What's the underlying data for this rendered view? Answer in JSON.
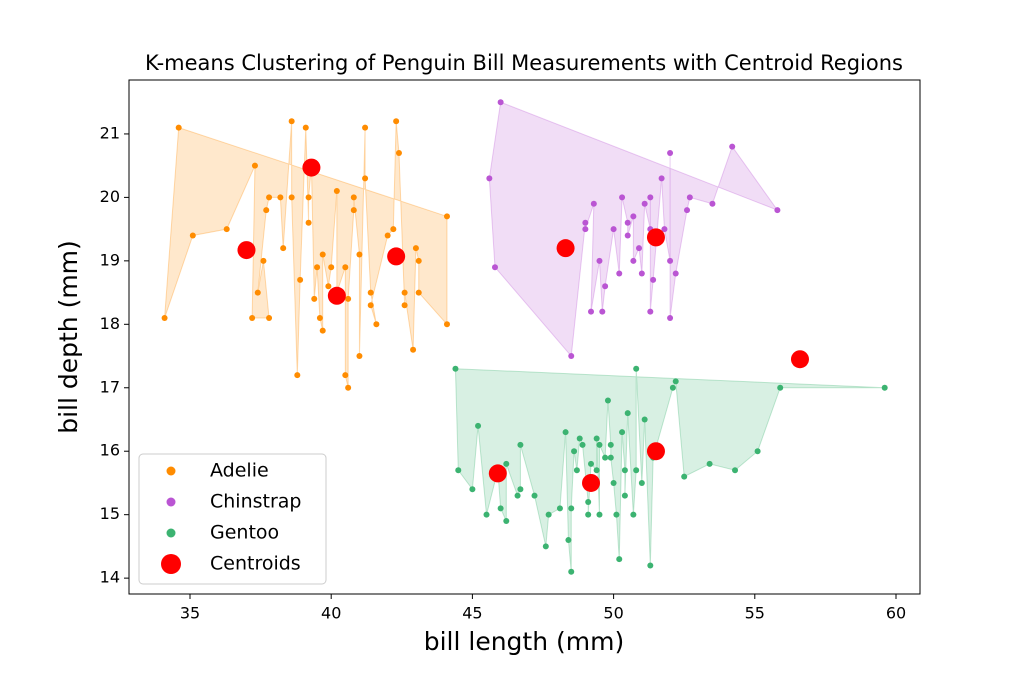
{
  "chart_data": {
    "type": "scatter",
    "title": "K-means Clustering of Penguin Bill Measurements with Centroid Regions",
    "xlabel": "bill length (mm)",
    "ylabel": "bill depth (mm)",
    "xlim": [
      32.84,
      60.85
    ],
    "ylim": [
      13.75,
      21.85
    ],
    "xticks": [
      35,
      40,
      45,
      50,
      55,
      60
    ],
    "yticks": [
      14,
      15,
      16,
      17,
      18,
      19,
      20,
      21
    ],
    "grid": false,
    "legend": "lower left",
    "series": [
      {
        "name": "Adelie",
        "color": "#ff8c00",
        "marker_size": 5,
        "fill_area": true,
        "x": [
          34.6,
          34.1,
          35.1,
          36.3,
          37.3,
          37.2,
          37.8,
          37.6,
          37.4,
          37.7,
          37.8,
          38.2,
          38.3,
          38.6,
          38.6,
          38.8,
          38.9,
          39.1,
          39.2,
          39.2,
          39.3,
          39.4,
          39.5,
          39.6,
          39.7,
          39.7,
          39.9,
          40.0,
          40.2,
          40.2,
          40.5,
          40.5,
          40.6,
          40.6,
          40.8,
          40.8,
          41.0,
          41.0,
          41.2,
          41.2,
          41.4,
          41.6,
          41.4,
          42.0,
          42.2,
          42.3,
          42.4,
          42.6,
          42.6,
          42.9,
          43.0,
          43.1,
          43.1,
          44.1,
          44.1
        ],
        "values": [
          21.1,
          18.1,
          19.4,
          19.5,
          20.5,
          18.1,
          18.1,
          19.0,
          18.5,
          19.8,
          20.0,
          20.0,
          19.2,
          21.2,
          20.0,
          17.2,
          18.7,
          21.1,
          19.6,
          20.0,
          20.5,
          18.4,
          18.9,
          18.1,
          17.9,
          19.1,
          18.6,
          18.9,
          20.1,
          18.5,
          18.9,
          17.2,
          17.0,
          18.4,
          19.8,
          20.0,
          19.1,
          17.5,
          21.1,
          20.3,
          18.5,
          18.0,
          18.3,
          19.4,
          19.5,
          21.2,
          20.7,
          18.3,
          18.5,
          17.6,
          19.2,
          19.0,
          18.5,
          18.0,
          19.7
        ]
      },
      {
        "name": "Chinstrap",
        "color": "#ba55d3",
        "marker_size": 5,
        "fill_area": true,
        "x": [
          46.0,
          45.6,
          45.8,
          48.5,
          49.0,
          49.0,
          49.3,
          49.2,
          49.5,
          49.6,
          49.7,
          50.0,
          50.2,
          50.3,
          50.5,
          50.5,
          50.7,
          50.7,
          50.9,
          51.0,
          51.1,
          51.3,
          51.3,
          51.3,
          51.4,
          51.7,
          51.8,
          52.0,
          52.0,
          52.0,
          52.2,
          52.6,
          52.7,
          53.5,
          54.2,
          55.8
        ],
        "values": [
          21.5,
          20.3,
          18.9,
          17.5,
          19.6,
          19.5,
          19.9,
          18.2,
          19.0,
          18.2,
          18.6,
          19.5,
          18.8,
          20.0,
          19.6,
          19.4,
          19.7,
          19.0,
          19.2,
          18.8,
          19.9,
          19.5,
          20.0,
          18.2,
          18.7,
          20.3,
          19.5,
          19.0,
          20.7,
          18.1,
          18.8,
          19.8,
          20.0,
          19.9,
          20.8,
          19.8
        ]
      },
      {
        "name": "Gentoo",
        "color": "#3cb371",
        "marker_size": 5,
        "fill_area": true,
        "x": [
          44.4,
          44.5,
          45.0,
          45.2,
          45.5,
          45.9,
          46.0,
          46.2,
          46.2,
          46.6,
          46.7,
          46.7,
          47.2,
          47.6,
          47.7,
          48.1,
          48.3,
          48.4,
          48.5,
          48.5,
          48.6,
          48.7,
          48.8,
          48.9,
          49.1,
          49.1,
          49.2,
          49.4,
          49.4,
          49.5,
          49.5,
          49.7,
          49.8,
          49.9,
          49.9,
          50.0,
          50.1,
          50.2,
          50.3,
          50.4,
          50.4,
          50.5,
          50.7,
          50.8,
          50.8,
          51.0,
          51.1,
          51.3,
          51.4,
          52.1,
          52.2,
          52.5,
          53.4,
          54.3,
          55.1,
          55.9,
          59.6
        ],
        "values": [
          17.3,
          15.7,
          15.4,
          16.4,
          15.0,
          15.7,
          15.1,
          14.9,
          15.8,
          15.3,
          15.4,
          16.1,
          15.3,
          14.5,
          15.0,
          15.1,
          16.3,
          14.6,
          14.1,
          15.1,
          16.0,
          15.7,
          16.2,
          16.1,
          15.2,
          15.0,
          15.8,
          15.7,
          16.2,
          15.0,
          16.1,
          15.9,
          16.8,
          16.1,
          15.9,
          15.5,
          15.0,
          14.3,
          16.3,
          15.7,
          15.3,
          16.6,
          15.0,
          15.7,
          17.3,
          15.5,
          16.5,
          14.2,
          15.9,
          17.0,
          17.1,
          15.6,
          15.8,
          15.7,
          16.0,
          17.0,
          17.0
        ]
      },
      {
        "name": "Centroids",
        "color": "#ff0000",
        "marker_size": 10,
        "fill_area": false,
        "x": [
          37.0,
          39.3,
          42.3,
          40.2,
          48.3,
          51.5,
          56.6,
          45.9,
          49.2,
          51.5
        ],
        "values": [
          19.17,
          20.47,
          19.07,
          18.45,
          19.2,
          19.37,
          17.45,
          15.65,
          15.5,
          16.0
        ]
      }
    ]
  }
}
